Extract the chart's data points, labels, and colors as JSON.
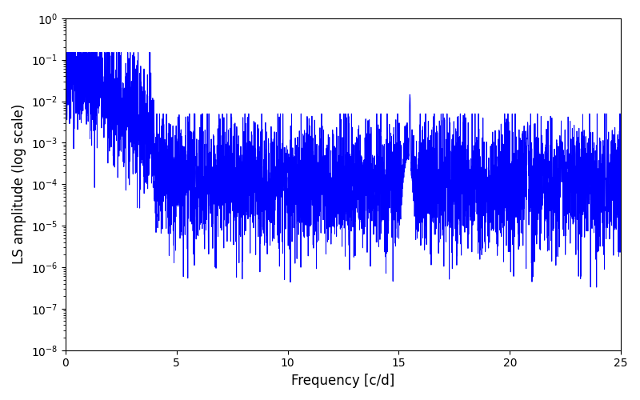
{
  "title": "",
  "xlabel": "Frequency [c/d]",
  "ylabel": "LS amplitude (log scale)",
  "xlim": [
    0,
    25
  ],
  "ylim": [
    1e-08,
    1
  ],
  "line_color": "#0000ff",
  "line_width": 0.7,
  "figsize": [
    8.0,
    5.0
  ],
  "dpi": 100,
  "yscale": "log",
  "seed": 42,
  "n_points": 5000,
  "freq_max": 25.0,
  "noise_std": 1.8,
  "floor": 1e-08,
  "background_color": "#ffffff"
}
